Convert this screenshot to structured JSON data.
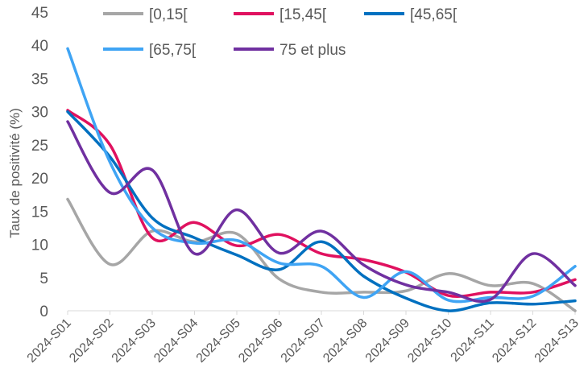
{
  "chart_data": {
    "type": "line",
    "title": "",
    "xlabel": "",
    "ylabel": "Taux de positivité (%)",
    "ylim": [
      0,
      45
    ],
    "yticks": [
      0,
      5,
      10,
      15,
      20,
      25,
      30,
      35,
      40,
      45
    ],
    "grid": false,
    "legend_position": "top",
    "categories": [
      "2024-S01",
      "2024-S02",
      "2024-S03",
      "2024-S04",
      "2024-S05",
      "2024-S06",
      "2024-S07",
      "2024-S08",
      "2024-S09",
      "2024-S10",
      "2024-S11",
      "2024-S12",
      "2024-S13"
    ],
    "series": [
      {
        "name": "[0,15[",
        "color": "#a6a6a6",
        "values": [
          16.8,
          7.0,
          12.0,
          10.4,
          11.6,
          4.8,
          2.8,
          2.8,
          3.0,
          5.6,
          3.8,
          4.1,
          0.0
        ]
      },
      {
        "name": "[15,45[",
        "color": "#e0115f",
        "values": [
          30.2,
          25.0,
          11.0,
          13.3,
          9.8,
          11.5,
          8.6,
          7.7,
          5.8,
          2.3,
          2.8,
          2.8,
          4.7
        ]
      },
      {
        "name": "[45,65[",
        "color": "#0070c0",
        "values": [
          30.0,
          23.2,
          14.0,
          11.0,
          8.4,
          6.2,
          10.4,
          5.2,
          1.9,
          0.0,
          1.2,
          1.0,
          1.5
        ]
      },
      {
        "name": "[65,75[",
        "color": "#3fa4f4",
        "values": [
          39.5,
          22.4,
          12.5,
          10.2,
          10.6,
          7.2,
          6.7,
          2.0,
          5.9,
          1.6,
          2.0,
          2.2,
          6.7
        ]
      },
      {
        "name": "75 et plus",
        "color": "#7030a0",
        "values": [
          28.5,
          17.8,
          21.2,
          8.6,
          15.2,
          8.7,
          12.0,
          6.9,
          3.9,
          2.8,
          1.7,
          8.6,
          3.8
        ]
      }
    ]
  }
}
